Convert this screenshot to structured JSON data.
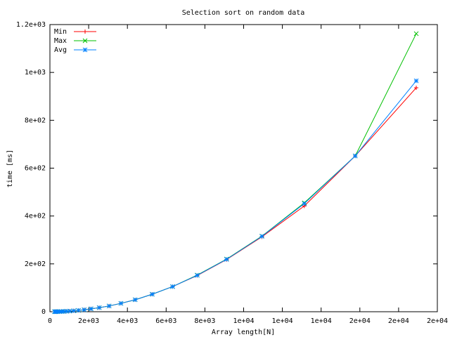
{
  "chart_data": {
    "type": "line",
    "title": "Selection sort on random data",
    "x_label": "Array length[N]",
    "y_label": "time [ms]",
    "x": [
      238,
      285,
      342,
      411,
      493,
      592,
      710,
      852,
      1023,
      1227,
      1473,
      1767,
      2121,
      2545,
      3054,
      3665,
      4398,
      5278,
      6333,
      7600,
      9120,
      10944,
      13133,
      15760,
      18911
    ],
    "series": [
      {
        "name": "Min",
        "color": "#ff0000",
        "marker": "plus",
        "values": [
          0.15,
          0.2,
          0.3,
          0.4,
          0.6,
          0.9,
          1.3,
          1.9,
          2.7,
          3.9,
          5.7,
          8.1,
          12,
          17,
          24,
          35,
          50,
          73,
          105,
          151,
          218,
          313,
          442,
          651,
          936
        ]
      },
      {
        "name": "Max",
        "color": "#00c000",
        "marker": "cross",
        "values": [
          0.15,
          0.2,
          0.3,
          0.4,
          0.6,
          0.9,
          1.3,
          1.9,
          2.7,
          3.9,
          5.7,
          8.1,
          12,
          17,
          24,
          35,
          50,
          73,
          105,
          153,
          220,
          316,
          455,
          651,
          1162
        ]
      },
      {
        "name": "Avg",
        "color": "#0080ff",
        "marker": "star",
        "values": [
          0.15,
          0.2,
          0.3,
          0.4,
          0.6,
          0.9,
          1.3,
          1.9,
          2.7,
          3.9,
          5.7,
          8.1,
          12,
          17,
          24,
          35,
          50,
          73,
          105,
          152,
          219,
          315,
          452,
          651,
          965
        ]
      }
    ],
    "xlim": [
      0,
      20000
    ],
    "xticks": [
      0,
      {
        "value": 2000,
        "label": "2e+03"
      },
      {
        "value": 4000,
        "label": "4e+03"
      },
      {
        "value": 6000,
        "label": "6e+03"
      },
      {
        "value": 8000,
        "label": "8e+03"
      },
      {
        "value": 10000,
        "label": "1e+04"
      },
      {
        "value": 12000,
        "label": "1e+04"
      },
      {
        "value": 14000,
        "label": "1e+04"
      },
      {
        "value": 16000,
        "label": "2e+04"
      },
      {
        "value": 18000,
        "label": "2e+04"
      },
      {
        "value": 20000,
        "label": "2e+04"
      }
    ],
    "ylim": [
      0,
      1200
    ],
    "yticks": [
      0,
      {
        "value": 200,
        "label": "2e+02"
      },
      {
        "value": 400,
        "label": "4e+02"
      },
      {
        "value": 600,
        "label": "6e+02"
      },
      {
        "value": 800,
        "label": "8e+02"
      },
      {
        "value": 1000,
        "label": "1e+03"
      },
      {
        "value": 1200,
        "label": "1.2e+03"
      }
    ],
    "grid": false,
    "legend": "top-left"
  }
}
